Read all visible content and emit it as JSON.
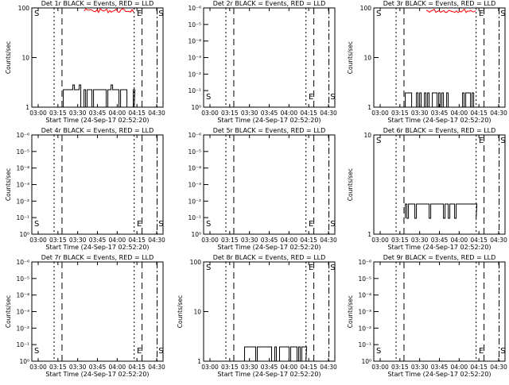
{
  "chart_data": [
    {
      "type": "line",
      "title": "Det 1r BLACK = Events, RED = LLD",
      "ylabel": "Counts/sec",
      "xlabel": "Start Time (24-Sep-17 02:52:20)",
      "x_ticks": [
        "03:00",
        "03:15",
        "03:30",
        "03:45",
        "04:00",
        "04:15",
        "04:30"
      ],
      "y_ticks": [
        "1",
        "10",
        "100"
      ],
      "y_scale": "log",
      "markers": [
        "S",
        "E",
        "S"
      ],
      "black": "high",
      "red": true
    },
    {
      "type": "line",
      "title": "Det 2r BLACK = Events, RED = LLD",
      "ylabel": "",
      "xlabel": "Start Time (24-Sep-17 02:52:20)",
      "x_ticks": [
        "03:00",
        "03:15",
        "03:30",
        "03:45",
        "04:00",
        "04:15",
        "04:30"
      ],
      "y_ticks": [
        "10⁰",
        "10⁻¹",
        "10⁻²",
        "10⁻³",
        "10⁻⁴",
        "10⁻⁵",
        "10⁻⁶"
      ],
      "y_scale": "log",
      "markers": [
        "S",
        "E",
        "S"
      ],
      "black": "none",
      "red": false
    },
    {
      "type": "line",
      "title": "Det 3r BLACK = Events, RED = LLD",
      "ylabel": "Counts/sec",
      "xlabel": "Start Time (24-Sep-17 02:52:20)",
      "x_ticks": [
        "03:00",
        "03:15",
        "03:30",
        "03:45",
        "04:00",
        "04:15",
        "04:30"
      ],
      "y_ticks": [
        "1",
        "10",
        "100"
      ],
      "y_scale": "log",
      "markers": [
        "S",
        "E",
        "S"
      ],
      "black": "sparse",
      "red": true
    },
    {
      "type": "line",
      "title": "Det 4r BLACK = Events, RED = LLD",
      "ylabel": "Counts/sec",
      "xlabel": "Start Time (24-Sep-17 02:52:20)",
      "x_ticks": [
        "03:00",
        "03:15",
        "03:30",
        "03:45",
        "04:00",
        "04:15",
        "04:30"
      ],
      "y_ticks": [
        "10⁰",
        "10⁻¹",
        "10⁻²",
        "10⁻³",
        "10⁻⁴",
        "10⁻⁵",
        "10⁻⁶"
      ],
      "y_scale": "log",
      "markers": [
        "S",
        "E",
        "S"
      ],
      "black": "none",
      "red": false
    },
    {
      "type": "line",
      "title": "Det 5r BLACK = Events, RED = LLD",
      "ylabel": "",
      "xlabel": "Start Time (24-Sep-17 02:52:20)",
      "x_ticks": [
        "03:00",
        "03:15",
        "03:30",
        "03:45",
        "04:00",
        "04:15",
        "04:30"
      ],
      "y_ticks": [
        "10⁰",
        "10⁻¹",
        "10⁻²",
        "10⁻³",
        "10⁻⁴",
        "10⁻⁵",
        "10⁻⁶"
      ],
      "y_scale": "log",
      "markers": [
        "S",
        "E",
        "S"
      ],
      "black": "none",
      "red": false
    },
    {
      "type": "line",
      "title": "Det 6r BLACK = Events, RED = LLD",
      "ylabel": "Counts/sec",
      "xlabel": "Start Time (24-Sep-17 02:52:20)",
      "x_ticks": [
        "03:00",
        "03:15",
        "03:30",
        "03:45",
        "04:00",
        "04:15",
        "04:30"
      ],
      "y_ticks": [
        "1",
        "10"
      ],
      "y_scale": "log",
      "markers": [
        "S",
        "E",
        "S"
      ],
      "black": "mid",
      "red": false
    },
    {
      "type": "line",
      "title": "Det 7r BLACK = Events, RED = LLD",
      "ylabel": "Counts/sec",
      "xlabel": "Start Time (24-Sep-17 02:52:20)",
      "x_ticks": [
        "03:00",
        "03:15",
        "03:30",
        "03:45",
        "04:00",
        "04:15",
        "04:30"
      ],
      "y_ticks": [
        "10⁰",
        "10⁻¹",
        "10⁻²",
        "10⁻³",
        "10⁻⁴",
        "10⁻⁵",
        "10⁻⁶"
      ],
      "y_scale": "log",
      "markers": [
        "S",
        "E",
        "S"
      ],
      "black": "none",
      "red": false
    },
    {
      "type": "line",
      "title": "Det 8r BLACK = Events, RED = LLD",
      "ylabel": "Counts/sec",
      "xlabel": "Start Time (24-Sep-17 02:52:20)",
      "x_ticks": [
        "03:00",
        "03:15",
        "03:30",
        "03:45",
        "04:00",
        "04:15",
        "04:30"
      ],
      "y_ticks": [
        "1",
        "10",
        "100"
      ],
      "y_scale": "log",
      "markers": [
        "S",
        "E",
        "S"
      ],
      "black": "low",
      "red": false
    },
    {
      "type": "line",
      "title": "Det 9r BLACK = Events, RED = LLD",
      "ylabel": "Counts/sec",
      "xlabel": "Start Time (24-Sep-17 02:52:20)",
      "x_ticks": [
        "03:00",
        "03:15",
        "03:30",
        "03:45",
        "04:00",
        "04:15",
        "04:30"
      ],
      "y_ticks": [
        "10⁰",
        "10⁻¹",
        "10⁻²",
        "10⁻³",
        "10⁻⁴",
        "10⁻⁵",
        "10⁻⁶"
      ],
      "y_scale": "log",
      "markers": [
        "S",
        "E",
        "S"
      ],
      "black": "none",
      "red": false
    }
  ]
}
